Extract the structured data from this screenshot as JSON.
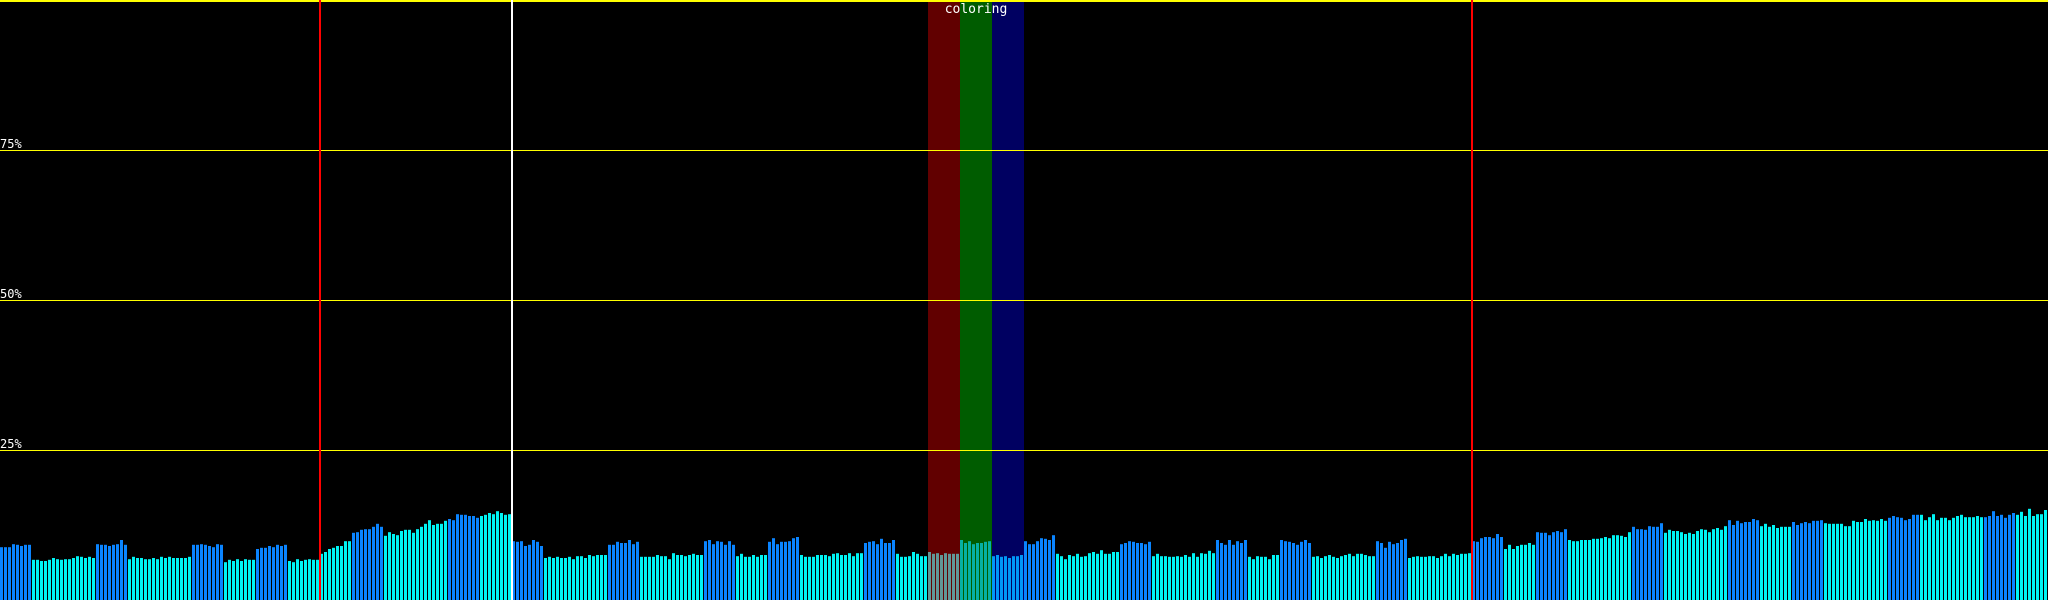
{
  "chart_data": {
    "type": "bar",
    "ylim": [
      0,
      100
    ],
    "y_unit": "%",
    "grid": true,
    "gridlines": [
      25,
      50,
      75,
      100
    ],
    "y_tick_labels": [
      "25%",
      "50%",
      "75%"
    ],
    "colors": {
      "blue": "#0a84ff",
      "cyan": "#00f4f4",
      "grid": "#ffff00",
      "background": "#000000"
    },
    "markers": [
      {
        "bar": 80,
        "color": "#ff0000"
      },
      {
        "bar": 128,
        "color": "#ffffff"
      },
      {
        "bar": 368,
        "color": "#ff0000"
      }
    ],
    "highlight": {
      "label": "coloring",
      "bands": [
        {
          "start_bar": 232,
          "end_bar": 240,
          "color": "rgba(255,0,0,0.38)"
        },
        {
          "start_bar": 240,
          "end_bar": 248,
          "color": "rgba(0,255,0,0.36)"
        },
        {
          "start_bar": 248,
          "end_bar": 256,
          "color": "rgba(0,0,255,0.38)"
        }
      ]
    },
    "segments": [
      {
        "color": "blue",
        "values": [
          8.8,
          8.8,
          8.8,
          9.3,
          9.2,
          9.0,
          9.2,
          9.2
        ]
      },
      {
        "color": "cyan",
        "values": [
          6.7,
          6.7,
          6.5,
          6.5,
          6.7,
          7.0,
          6.8,
          6.7,
          6.8,
          6.8,
          7.0,
          7.3,
          7.2,
          7.0,
          7.2,
          7.0
        ]
      },
      {
        "color": "blue",
        "values": [
          9.3,
          9.2,
          9.2,
          9.0,
          9.2,
          9.3,
          10.0,
          9.2
        ]
      },
      {
        "color": "cyan",
        "values": [
          6.8,
          7.2,
          7.0,
          7.0,
          6.8,
          6.8,
          7.0,
          6.8,
          7.2,
          7.0,
          7.2,
          7.0,
          7.0,
          7.0,
          7.0,
          7.2
        ]
      },
      {
        "color": "blue",
        "values": [
          9.2,
          9.2,
          9.3,
          9.2,
          9.0,
          8.8,
          9.3,
          9.2
        ]
      },
      {
        "color": "cyan",
        "values": [
          6.3,
          6.7,
          6.5,
          6.8,
          6.5,
          6.8,
          6.7,
          6.7
        ]
      },
      {
        "color": "blue",
        "values": [
          8.5,
          8.7,
          8.7,
          9.0,
          8.8,
          9.2,
          9.0,
          9.2
        ]
      },
      {
        "color": "cyan",
        "values": [
          6.5,
          6.3,
          6.8,
          6.5,
          6.7,
          6.8,
          6.7,
          6.7,
          7.7,
          8.0,
          8.5,
          8.7,
          9.0,
          9.0,
          9.8,
          9.8
        ]
      },
      {
        "color": "blue",
        "values": [
          11.2,
          11.3,
          11.7,
          11.8,
          11.8,
          12.2,
          12.7,
          12.2
        ]
      },
      {
        "color": "cyan",
        "values": [
          10.7,
          11.3,
          11.0,
          10.8,
          11.5,
          11.7,
          11.7,
          11.2,
          11.8,
          12.2,
          12.7,
          13.3,
          12.5,
          12.7,
          12.7,
          13.2
        ]
      },
      {
        "color": "blue",
        "values": [
          13.5,
          13.3,
          14.3,
          14.2,
          14.2,
          14.0,
          14.0,
          13.7
        ]
      },
      {
        "color": "cyan",
        "values": [
          14.0,
          14.2,
          14.5,
          14.3,
          14.8,
          14.5,
          14.2,
          14.3
        ]
      },
      {
        "color": "blue",
        "values": [
          9.8,
          9.7,
          9.8,
          9.0,
          9.2,
          10.0,
          9.7,
          9.0
        ]
      },
      {
        "color": "cyan",
        "values": [
          7.0,
          7.2,
          7.0,
          7.2,
          7.0,
          7.0,
          7.2,
          6.8,
          7.3,
          7.3,
          7.0,
          7.5,
          7.3,
          7.5,
          7.5,
          7.5
        ]
      },
      {
        "color": "blue",
        "values": [
          9.2,
          9.2,
          9.7,
          9.5,
          9.5,
          10.0,
          9.3,
          9.7
        ]
      },
      {
        "color": "cyan",
        "values": [
          7.2,
          7.2,
          7.2,
          7.2,
          7.5,
          7.3,
          7.3,
          6.8,
          7.8,
          7.5,
          7.5,
          7.3,
          7.5,
          7.7,
          7.5,
          7.5
        ]
      },
      {
        "color": "blue",
        "values": [
          9.8,
          10.0,
          9.3,
          9.8,
          9.7,
          9.2,
          9.8,
          9.2
        ]
      },
      {
        "color": "cyan",
        "values": [
          7.3,
          7.7,
          7.2,
          7.2,
          7.5,
          7.2,
          7.5,
          7.5
        ]
      },
      {
        "color": "blue",
        "values": [
          9.7,
          10.3,
          9.3,
          9.7,
          9.7,
          9.8,
          10.3,
          10.5
        ]
      },
      {
        "color": "cyan",
        "values": [
          7.5,
          7.2,
          7.2,
          7.2,
          7.5,
          7.5,
          7.5,
          7.3,
          7.7,
          7.8,
          7.5,
          7.5,
          7.8,
          7.3,
          7.8,
          7.8
        ]
      },
      {
        "color": "blue",
        "values": [
          9.5,
          9.7,
          9.8,
          9.3,
          10.2,
          9.5,
          9.5,
          10.0
        ]
      },
      {
        "color": "cyan",
        "values": [
          7.7,
          7.2,
          7.2,
          7.3,
          8.0,
          7.7,
          7.3,
          7.3,
          8.0,
          7.7,
          7.8,
          7.5,
          7.8,
          7.7,
          7.7,
          7.7
        ]
      },
      {
        "color": "blue",
        "values": [
          10.0,
          9.5,
          9.8,
          9.3,
          9.5,
          9.5,
          9.7,
          9.8
        ]
      },
      {
        "color": "cyan",
        "values": [
          7.3,
          7.5,
          7.2,
          7.3,
          7.0,
          7.3,
          7.3,
          7.5
        ]
      },
      {
        "color": "blue",
        "values": [
          9.8,
          9.3,
          9.3,
          9.8,
          10.3,
          10.2,
          10.0,
          10.8
        ]
      },
      {
        "color": "cyan",
        "values": [
          7.7,
          7.3,
          6.8,
          7.5,
          7.3,
          7.7,
          7.2,
          7.3,
          7.8,
          8.0,
          7.7,
          8.3,
          7.7,
          7.7,
          8.0,
          8.0
        ]
      },
      {
        "color": "blue",
        "values": [
          9.3,
          9.5,
          9.8,
          9.7,
          9.5,
          9.5,
          9.3,
          9.7
        ]
      },
      {
        "color": "cyan",
        "values": [
          7.3,
          7.7,
          7.3,
          7.3,
          7.2,
          7.2,
          7.3,
          7.2,
          7.5,
          7.2,
          7.8,
          7.2,
          7.8,
          7.7,
          8.2,
          7.8
        ]
      },
      {
        "color": "blue",
        "values": [
          10.0,
          9.5,
          9.2,
          10.0,
          9.2,
          9.8,
          9.5,
          10.0
        ]
      },
      {
        "color": "cyan",
        "values": [
          7.2,
          6.8,
          7.3,
          7.2,
          7.2,
          6.8,
          7.5,
          7.5
        ]
      },
      {
        "color": "blue",
        "values": [
          10.0,
          9.8,
          9.7,
          9.5,
          9.2,
          9.7,
          10.0,
          9.5
        ]
      },
      {
        "color": "cyan",
        "values": [
          7.2,
          7.3,
          7.0,
          7.3,
          7.5,
          7.2,
          7.0,
          7.3,
          7.5,
          7.7,
          7.3,
          7.7,
          7.7,
          7.5,
          7.3,
          7.3
        ]
      },
      {
        "color": "blue",
        "values": [
          9.8,
          9.5,
          8.7,
          9.7,
          9.3,
          9.5,
          10.0,
          10.2
        ]
      },
      {
        "color": "cyan",
        "values": [
          7.0,
          7.2,
          7.3,
          7.2,
          7.2,
          7.3,
          7.3,
          7.0,
          7.3,
          7.7,
          7.3,
          7.7,
          7.5,
          7.7,
          7.7,
          7.8
        ]
      },
      {
        "color": "blue",
        "values": [
          9.8,
          9.7,
          10.3,
          10.5,
          10.5,
          10.3,
          11.0,
          10.5
        ]
      },
      {
        "color": "cyan",
        "values": [
          8.5,
          9.2,
          8.5,
          9.0,
          9.2,
          9.2,
          9.5,
          9.2
        ]
      },
      {
        "color": "blue",
        "values": [
          11.3,
          11.2,
          11.2,
          10.8,
          11.3,
          11.5,
          11.3,
          11.8
        ]
      },
      {
        "color": "cyan",
        "values": [
          10.0,
          9.8,
          9.8,
          10.0,
          10.0,
          10.0,
          10.2,
          10.2,
          10.3,
          10.5,
          10.3,
          10.8,
          10.8,
          10.7,
          10.5,
          11.3
        ]
      },
      {
        "color": "blue",
        "values": [
          12.2,
          11.8,
          11.8,
          11.7,
          12.3,
          12.2,
          12.2,
          12.8
        ]
      },
      {
        "color": "cyan",
        "values": [
          11.2,
          11.7,
          11.5,
          11.5,
          11.3,
          11.0,
          11.2,
          11.0,
          11.5,
          11.8,
          11.7,
          11.3,
          11.8,
          12.0,
          11.7,
          12.3
        ]
      },
      {
        "color": "blue",
        "values": [
          13.3,
          12.5,
          13.2,
          12.8,
          13.0,
          13.0,
          13.5,
          13.3
        ]
      },
      {
        "color": "cyan",
        "values": [
          12.3,
          12.7,
          12.2,
          12.5,
          12.0,
          12.2,
          12.2,
          12.2
        ]
      },
      {
        "color": "blue",
        "values": [
          13.0,
          12.5,
          12.8,
          13.0,
          12.8,
          13.2,
          13.2,
          13.3
        ]
      },
      {
        "color": "cyan",
        "values": [
          12.8,
          12.7,
          12.7,
          12.7,
          12.7,
          12.3,
          12.3,
          13.2,
          13.0,
          13.0,
          13.5,
          13.2,
          13.3,
          13.2,
          13.5,
          13.2
        ]
      },
      {
        "color": "blue",
        "values": [
          13.7,
          14.0,
          13.8,
          13.7,
          13.3,
          13.5,
          14.2,
          14.2
        ]
      },
      {
        "color": "cyan",
        "values": [
          14.2,
          13.3,
          13.8,
          14.3,
          13.3,
          13.7,
          13.7,
          13.3,
          13.7,
          14.0,
          14.2,
          13.8,
          13.8,
          13.8,
          14.0,
          13.8
        ]
      },
      {
        "color": "blue",
        "values": [
          13.8,
          14.0,
          14.8,
          14.0,
          14.2,
          13.7,
          14.2,
          14.5
        ]
      },
      {
        "color": "cyan",
        "values": [
          14.2,
          14.7,
          14.0,
          15.2,
          14.0,
          14.3,
          14.3,
          15.0
        ]
      }
    ]
  }
}
